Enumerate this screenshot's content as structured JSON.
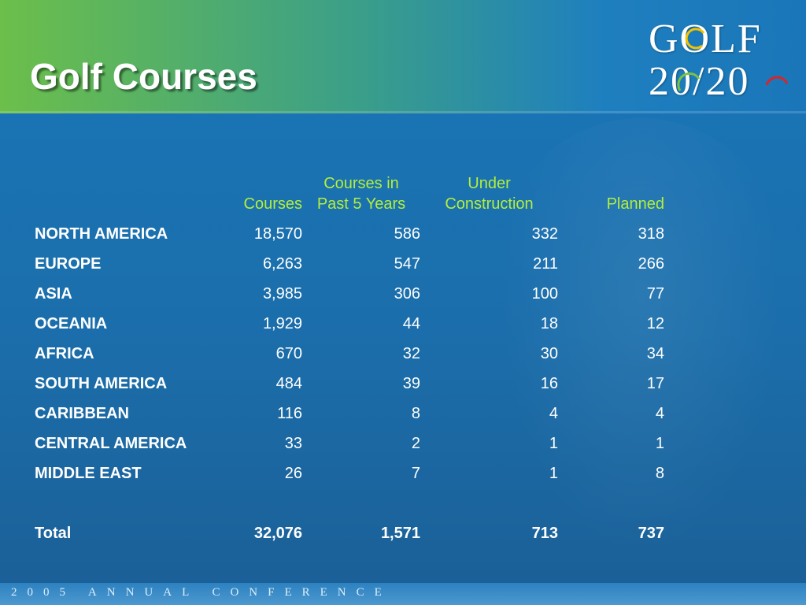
{
  "slide": {
    "title": "Golf Courses",
    "logo": {
      "line1": "GOLF",
      "line2": "20/20"
    },
    "footer": "2005 ANNUAL CONFERENCE"
  },
  "table": {
    "headers": {
      "region": "",
      "courses": "Courses",
      "past5_line1": "Courses in",
      "past5_line2": "Past 5 Years",
      "under_line1": "Under",
      "under_line2": "Construction",
      "planned": "Planned"
    },
    "rows": [
      {
        "region": "NORTH AMERICA",
        "courses": "18,570",
        "past5": "586",
        "under": "332",
        "planned": "318"
      },
      {
        "region": "EUROPE",
        "courses": "6,263",
        "past5": "547",
        "under": "211",
        "planned": "266"
      },
      {
        "region": "ASIA",
        "courses": "3,985",
        "past5": "306",
        "under": "100",
        "planned": "77"
      },
      {
        "region": "OCEANIA",
        "courses": "1,929",
        "past5": "44",
        "under": "18",
        "planned": "12"
      },
      {
        "region": "AFRICA",
        "courses": "670",
        "past5": "32",
        "under": "30",
        "planned": "34"
      },
      {
        "region": "SOUTH AMERICA",
        "courses": "484",
        "past5": "39",
        "under": "16",
        "planned": "17"
      },
      {
        "region": "CARIBBEAN",
        "courses": "116",
        "past5": "8",
        "under": "4",
        "planned": "4"
      },
      {
        "region": "CENTRAL AMERICA",
        "courses": "33",
        "past5": "2",
        "under": "1",
        "planned": "1"
      },
      {
        "region": "MIDDLE EAST",
        "courses": "26",
        "past5": "7",
        "under": "1",
        "planned": "8"
      }
    ],
    "total": {
      "label": "Total",
      "courses": "32,076",
      "past5": "1,571",
      "under": "713",
      "planned": "737"
    }
  },
  "colors": {
    "header_text": "#b3ef3c",
    "background": "#1a76b8",
    "title_band_left": "#6cbf4a",
    "logo_ring_yellow": "#f2c300",
    "logo_ring_green": "#7cc242",
    "logo_ring_red": "#d9252a"
  }
}
